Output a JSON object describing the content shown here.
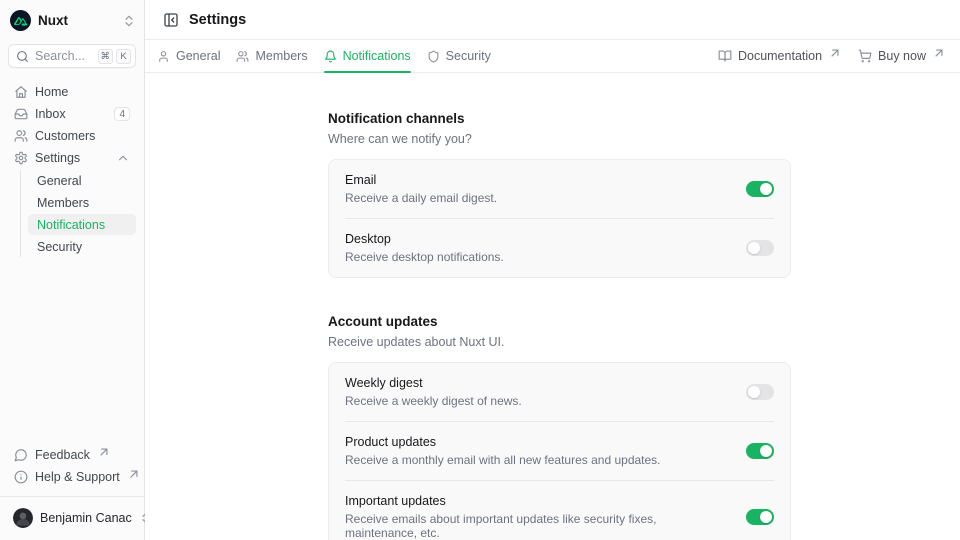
{
  "colors": {
    "primary": "#18b463",
    "nuxt_green": "#00dc82",
    "border": "#e4e4e7",
    "card_bg": "#f9f9fa",
    "muted": "#6d7280"
  },
  "sidebar": {
    "logo_label": "Nuxt",
    "search": {
      "placeholder": "Search...",
      "kbd": [
        "⌘",
        "K"
      ]
    },
    "nav": [
      {
        "label": "Home",
        "icon": "home"
      },
      {
        "label": "Inbox",
        "icon": "inbox",
        "badge": "4"
      },
      {
        "label": "Customers",
        "icon": "users"
      },
      {
        "label": "Settings",
        "icon": "gear",
        "expanded": true,
        "children": [
          {
            "label": "General",
            "active": false
          },
          {
            "label": "Members",
            "active": false
          },
          {
            "label": "Notifications",
            "active": true
          },
          {
            "label": "Security",
            "active": false
          }
        ]
      }
    ],
    "footer": [
      {
        "label": "Feedback",
        "icon": "message-circle",
        "external": true
      },
      {
        "label": "Help & Support",
        "icon": "info",
        "external": true
      }
    ],
    "user": {
      "name": "Benjamin Canac"
    }
  },
  "header": {
    "title": "Settings",
    "links": [
      {
        "label": "Documentation",
        "icon": "book-open",
        "external": true
      },
      {
        "label": "Buy now",
        "icon": "cart",
        "external": true
      }
    ]
  },
  "tabs": [
    {
      "label": "General",
      "icon": "user",
      "active": false
    },
    {
      "label": "Members",
      "icon": "users",
      "active": false
    },
    {
      "label": "Notifications",
      "icon": "bell",
      "active": true
    },
    {
      "label": "Security",
      "icon": "shield",
      "active": false
    }
  ],
  "sections": [
    {
      "title": "Notification channels",
      "subtitle": "Where can we notify you?",
      "items": [
        {
          "label": "Email",
          "description": "Receive a daily email digest.",
          "enabled": true
        },
        {
          "label": "Desktop",
          "description": "Receive desktop notifications.",
          "enabled": false
        }
      ]
    },
    {
      "title": "Account updates",
      "subtitle": "Receive updates about Nuxt UI.",
      "items": [
        {
          "label": "Weekly digest",
          "description": "Receive a weekly digest of news.",
          "enabled": false
        },
        {
          "label": "Product updates",
          "description": "Receive a monthly email with all new features and updates.",
          "enabled": true
        },
        {
          "label": "Important updates",
          "description": "Receive emails about important updates like security fixes, maintenance, etc.",
          "enabled": true
        }
      ]
    }
  ]
}
